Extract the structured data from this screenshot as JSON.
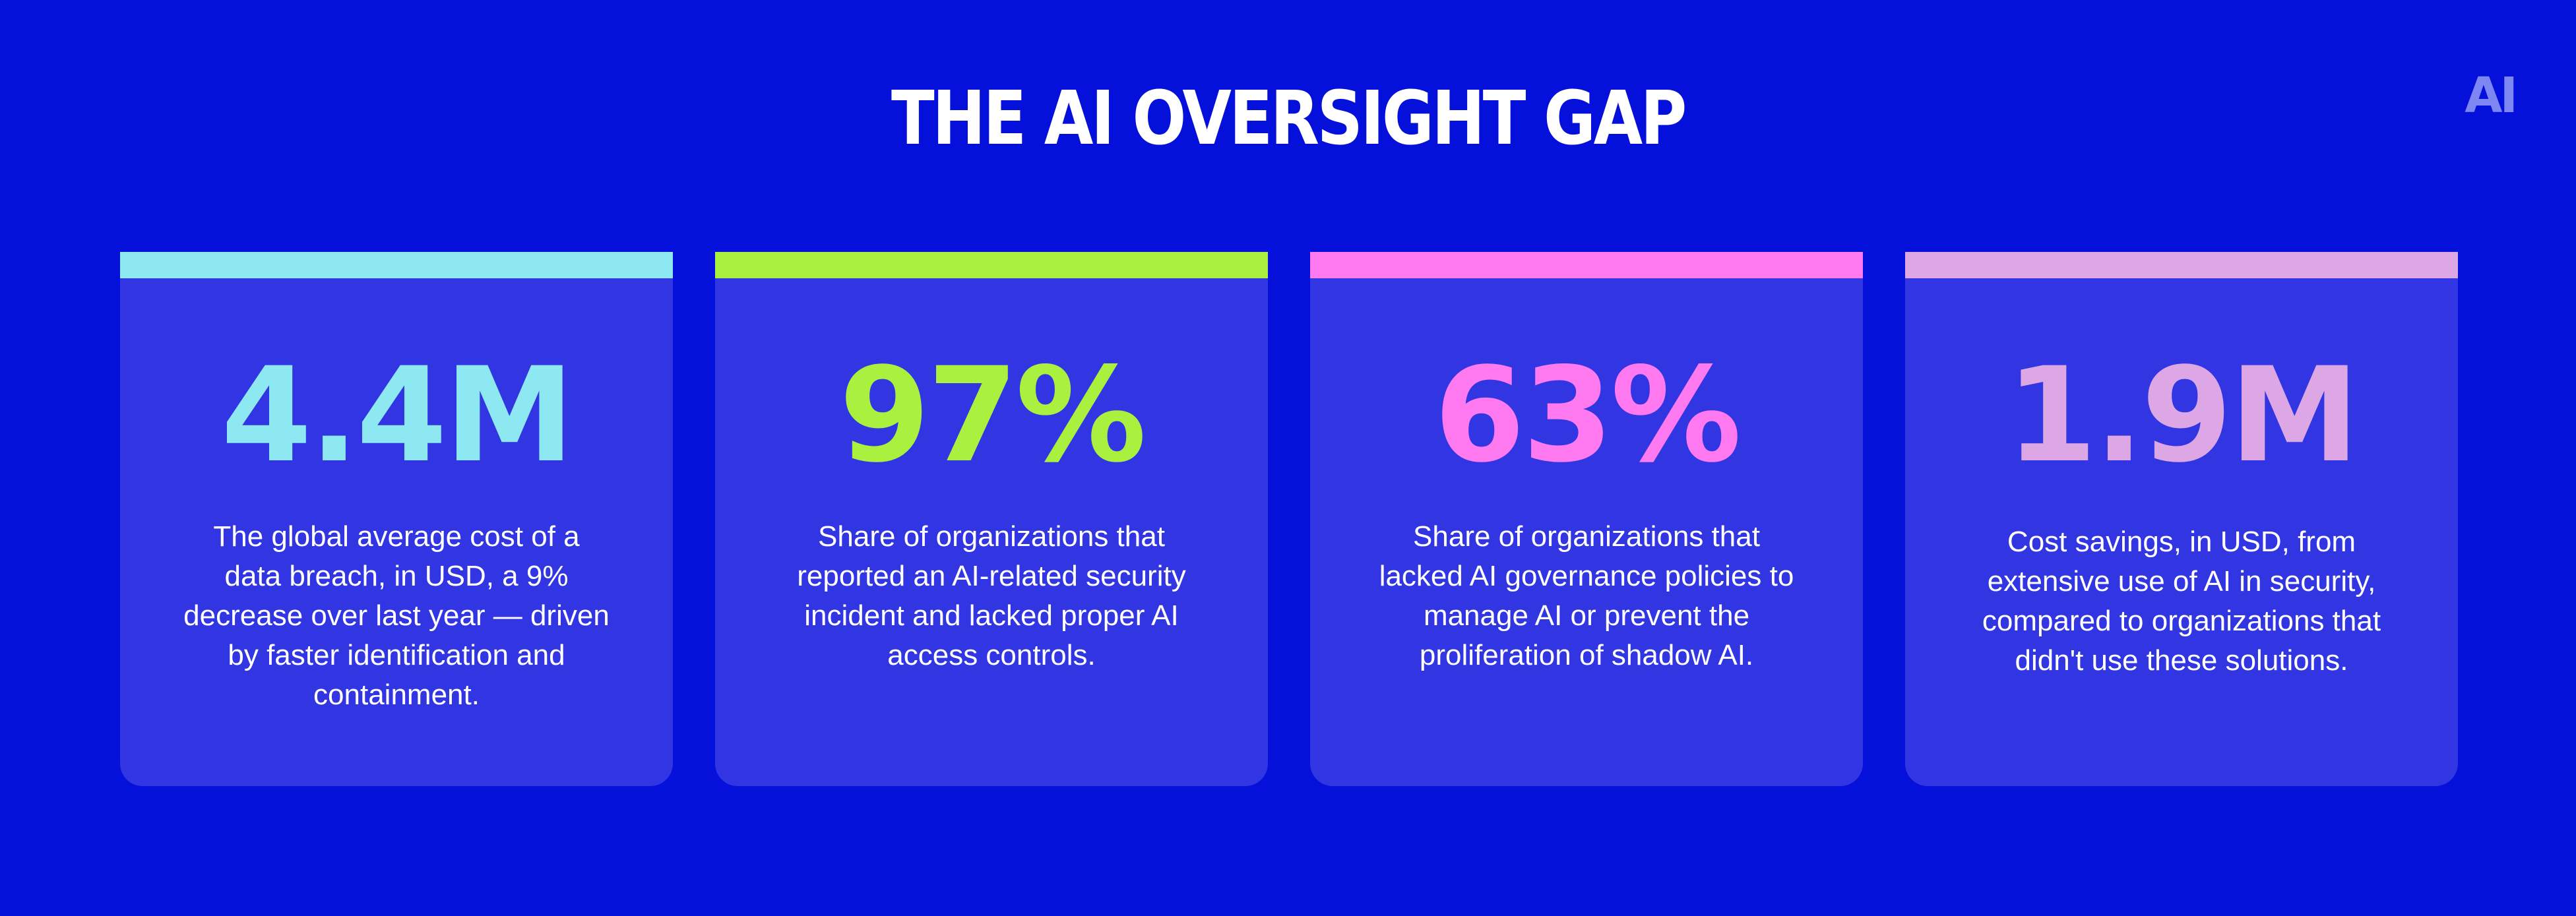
{
  "title": "THE AI OVERSIGHT GAP",
  "logo_text": "AI",
  "colors": {
    "background": "#0510DA",
    "card": "#3136E2",
    "cyan": "#8EE8F2",
    "green": "#AAF03E",
    "pink": "#FF7AF0",
    "lavender": "#DDA7E6"
  },
  "cards": [
    {
      "value": "4.4M",
      "description": "The global average cost of a data breach, in USD, a 9% decrease over last year — driven by faster identification and containment.",
      "accent_color": "#8EE8F2"
    },
    {
      "value": "97%",
      "description": "Share of organizations that reported an AI-related security incident and lacked proper AI access controls.",
      "accent_color": "#AAF03E"
    },
    {
      "value": "63%",
      "description": "Share of organizations that lacked AI governance policies to manage AI or prevent the proliferation of shadow AI.",
      "accent_color": "#FF7AF0"
    },
    {
      "value": "1.9M",
      "description": "Cost savings, in USD, from extensive use of AI in security, compared to organizations that didn't use these solutions.",
      "accent_color": "#DDA7E6"
    }
  ]
}
